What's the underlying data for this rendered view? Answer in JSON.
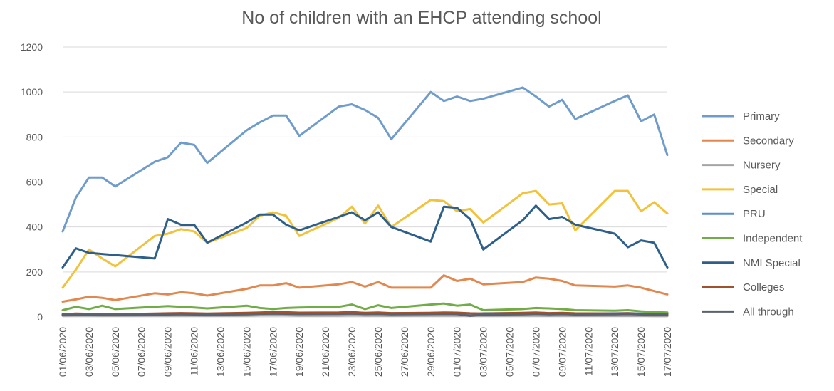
{
  "chart_data": {
    "type": "line",
    "title": "No of children with an EHCP attending school",
    "ylim": [
      0,
      1200
    ],
    "yticks": [
      0,
      200,
      400,
      600,
      800,
      1000,
      1200
    ],
    "grid": true,
    "legend_position": "right",
    "x_tick_labels": [
      "01/06/2020",
      "03/06/2020",
      "05/06/2020",
      "07/06/2020",
      "09/06/2020",
      "11/06/2020",
      "13/06/2020",
      "15/06/2020",
      "17/06/2020",
      "19/06/2020",
      "21/06/2020",
      "23/06/2020",
      "25/06/2020",
      "27/06/2020",
      "29/06/2020",
      "01/07/2020",
      "03/07/2020",
      "05/07/2020",
      "07/07/2020",
      "09/07/2020",
      "11/07/2020",
      "13/07/2020",
      "15/07/2020",
      "17/07/2020"
    ],
    "x": [
      "2020-06-01",
      "2020-06-02",
      "2020-06-03",
      "2020-06-04",
      "2020-06-05",
      "2020-06-08",
      "2020-06-09",
      "2020-06-10",
      "2020-06-11",
      "2020-06-12",
      "2020-06-15",
      "2020-06-16",
      "2020-06-17",
      "2020-06-18",
      "2020-06-19",
      "2020-06-22",
      "2020-06-23",
      "2020-06-24",
      "2020-06-25",
      "2020-06-26",
      "2020-06-29",
      "2020-06-30",
      "2020-07-01",
      "2020-07-02",
      "2020-07-03",
      "2020-07-06",
      "2020-07-07",
      "2020-07-08",
      "2020-07-09",
      "2020-07-10",
      "2020-07-13",
      "2020-07-14",
      "2020-07-15",
      "2020-07-16",
      "2020-07-17"
    ],
    "series": [
      {
        "name": "Primary",
        "color": "#6f9ccb",
        "values": [
          380,
          530,
          620,
          620,
          580,
          690,
          710,
          775,
          765,
          685,
          830,
          865,
          895,
          895,
          805,
          935,
          945,
          920,
          885,
          790,
          1000,
          960,
          980,
          960,
          970,
          1020,
          980,
          935,
          965,
          880,
          960,
          985,
          870,
          900,
          720
        ]
      },
      {
        "name": "Secondary",
        "color": "#e2884f",
        "values": [
          68,
          78,
          90,
          85,
          75,
          105,
          100,
          110,
          105,
          95,
          125,
          140,
          140,
          150,
          130,
          145,
          155,
          135,
          155,
          130,
          130,
          185,
          160,
          170,
          145,
          155,
          175,
          170,
          160,
          140,
          135,
          140,
          130,
          115,
          100
        ]
      },
      {
        "name": "Nursery",
        "color": "#a5a5a5",
        "values": [
          5,
          6,
          6,
          5,
          5,
          6,
          6,
          6,
          6,
          5,
          6,
          7,
          7,
          7,
          6,
          6,
          7,
          6,
          6,
          5,
          6,
          6,
          6,
          5,
          5,
          6,
          6,
          5,
          6,
          5,
          5,
          5,
          5,
          4,
          4
        ]
      },
      {
        "name": "Special",
        "color": "#f2c23a",
        "values": [
          130,
          210,
          300,
          260,
          225,
          360,
          370,
          390,
          380,
          330,
          395,
          450,
          465,
          450,
          360,
          440,
          490,
          415,
          495,
          400,
          520,
          515,
          470,
          480,
          420,
          550,
          560,
          500,
          505,
          385,
          560,
          560,
          470,
          510,
          460
        ]
      },
      {
        "name": "PRU",
        "color": "#5b8fd0",
        "values": [
          10,
          12,
          14,
          12,
          11,
          14,
          15,
          16,
          15,
          14,
          16,
          18,
          19,
          18,
          16,
          18,
          19,
          17,
          18,
          16,
          18,
          19,
          18,
          12,
          16,
          17,
          18,
          16,
          17,
          15,
          16,
          17,
          15,
          16,
          15
        ]
      },
      {
        "name": "Independent",
        "color": "#70ad47",
        "values": [
          30,
          45,
          35,
          50,
          35,
          45,
          48,
          45,
          42,
          38,
          50,
          40,
          35,
          40,
          42,
          45,
          55,
          35,
          52,
          40,
          55,
          60,
          50,
          55,
          30,
          35,
          40,
          38,
          35,
          30,
          28,
          30,
          25,
          22,
          20
        ]
      },
      {
        "name": "NMI Special",
        "color": "#2e5f8a",
        "values": [
          220,
          305,
          285,
          280,
          275,
          260,
          435,
          410,
          410,
          330,
          420,
          455,
          455,
          410,
          385,
          445,
          465,
          430,
          465,
          400,
          335,
          490,
          485,
          435,
          300,
          430,
          495,
          435,
          445,
          410,
          370,
          310,
          340,
          330,
          220
        ]
      },
      {
        "name": "Colleges",
        "color": "#a0522d",
        "values": [
          12,
          15,
          14,
          13,
          12,
          15,
          16,
          17,
          16,
          15,
          18,
          20,
          22,
          21,
          19,
          20,
          22,
          18,
          20,
          17,
          18,
          20,
          19,
          16,
          15,
          18,
          20,
          17,
          18,
          16,
          15,
          16,
          14,
          13,
          12
        ]
      },
      {
        "name": "All through",
        "color": "#5a6270",
        "values": [
          8,
          9,
          10,
          9,
          9,
          10,
          11,
          12,
          11,
          10,
          12,
          14,
          15,
          14,
          13,
          14,
          15,
          13,
          14,
          12,
          13,
          14,
          13,
          5,
          10,
          12,
          14,
          12,
          13,
          11,
          12,
          13,
          11,
          10,
          9
        ]
      }
    ]
  }
}
